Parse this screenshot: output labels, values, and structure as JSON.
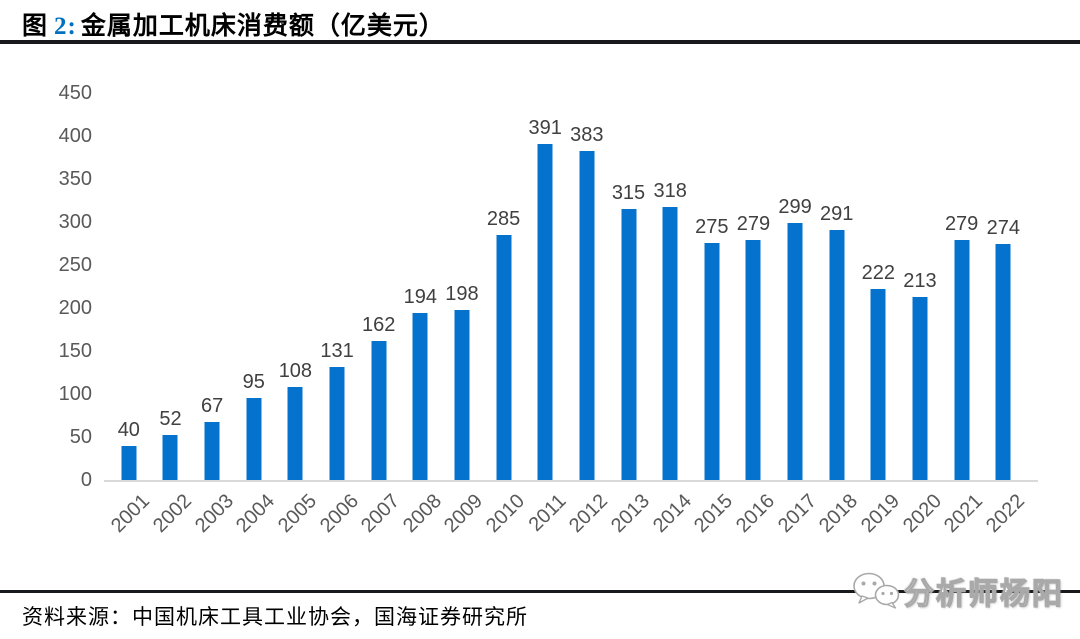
{
  "figure": {
    "label_prefix": "图",
    "label_number": "2:",
    "title_text": "金属加工机床消费额（亿美元）"
  },
  "chart_data": {
    "type": "bar",
    "title": "金属加工机床消费额（亿美元）",
    "categories": [
      "2001",
      "2002",
      "2003",
      "2004",
      "2005",
      "2006",
      "2007",
      "2008",
      "2009",
      "2010",
      "2011",
      "2012",
      "2013",
      "2014",
      "2015",
      "2016",
      "2017",
      "2018",
      "2019",
      "2020",
      "2021",
      "2022"
    ],
    "values": [
      40,
      52,
      67,
      95,
      108,
      131,
      162,
      194,
      198,
      285,
      391,
      383,
      315,
      318,
      275,
      279,
      299,
      291,
      222,
      213,
      279,
      274
    ],
    "xlabel": "",
    "ylabel": "",
    "ylim": [
      0,
      450
    ],
    "yticks": [
      0,
      50,
      100,
      150,
      200,
      250,
      300,
      350,
      400,
      450
    ],
    "grid": "off",
    "legend": "none",
    "value_labels": "above-bars",
    "bar_color": "#0573CE",
    "axis_label_color": "#595959",
    "value_label_color": "#404040",
    "baseline_color": "#d9d9d9"
  },
  "footer": {
    "source_text": "资料来源：中国机床工具工业协会，国海证券研究所"
  },
  "watermark": {
    "icon": "wechat-icon",
    "text": "分析师杨阳"
  }
}
